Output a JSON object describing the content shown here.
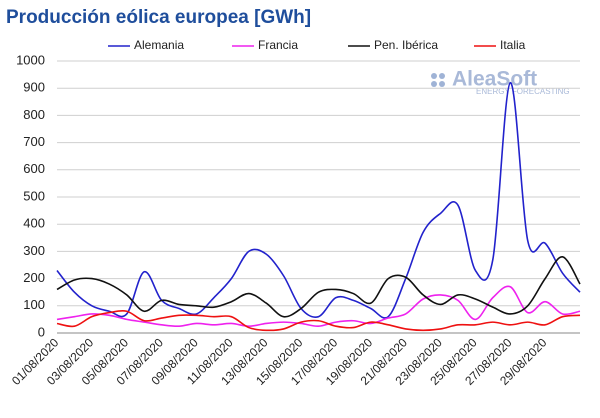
{
  "chart_data": {
    "type": "line",
    "title": "Producción eólica europea [GWh]",
    "logo": {
      "name": "AleaSoft",
      "tagline": "ENERGY FORECASTING"
    },
    "categories": [
      "01/08/2020",
      null,
      "03/08/2020",
      null,
      "05/08/2020",
      null,
      "07/08/2020",
      null,
      "09/08/2020",
      null,
      "11/08/2020",
      null,
      "13/08/2020",
      null,
      "15/08/2020",
      null,
      "17/08/2020",
      null,
      "19/08/2020",
      null,
      "21/08/2020",
      null,
      "23/08/2020",
      null,
      "25/08/2020",
      null,
      "27/08/2020",
      null,
      "29/08/2020",
      null,
      null
    ],
    "series": [
      {
        "name": "Alemania",
        "color": "#2222cc",
        "values": [
          230,
          150,
          100,
          80,
          70,
          225,
          120,
          90,
          70,
          130,
          200,
          300,
          290,
          210,
          90,
          60,
          130,
          120,
          90,
          60,
          200,
          370,
          440,
          470,
          230,
          270,
          920,
          340,
          330,
          220,
          150
        ]
      },
      {
        "name": "Francia",
        "color": "#ee22ee",
        "values": [
          50,
          60,
          70,
          65,
          50,
          40,
          30,
          25,
          35,
          30,
          35,
          25,
          35,
          40,
          35,
          25,
          40,
          45,
          35,
          55,
          70,
          125,
          140,
          120,
          50,
          130,
          170,
          75,
          115,
          70,
          80
        ]
      },
      {
        "name": "Pen. Ibérica",
        "color": "#111111",
        "values": [
          160,
          195,
          200,
          180,
          140,
          80,
          120,
          105,
          100,
          95,
          115,
          145,
          110,
          60,
          90,
          150,
          160,
          145,
          110,
          200,
          205,
          140,
          105,
          140,
          125,
          95,
          70,
          100,
          200,
          280,
          180
        ]
      },
      {
        "name": "Italia",
        "color": "#ee1111",
        "values": [
          35,
          25,
          60,
          75,
          80,
          45,
          55,
          65,
          65,
          60,
          60,
          20,
          10,
          15,
          40,
          45,
          25,
          20,
          40,
          30,
          15,
          10,
          15,
          30,
          30,
          40,
          30,
          40,
          30,
          60,
          65
        ]
      }
    ],
    "ylim": [
      0,
      1000
    ],
    "yticks": [
      0,
      100,
      200,
      300,
      400,
      500,
      600,
      700,
      800,
      900,
      1000
    ],
    "grid": true,
    "legend": "top"
  }
}
